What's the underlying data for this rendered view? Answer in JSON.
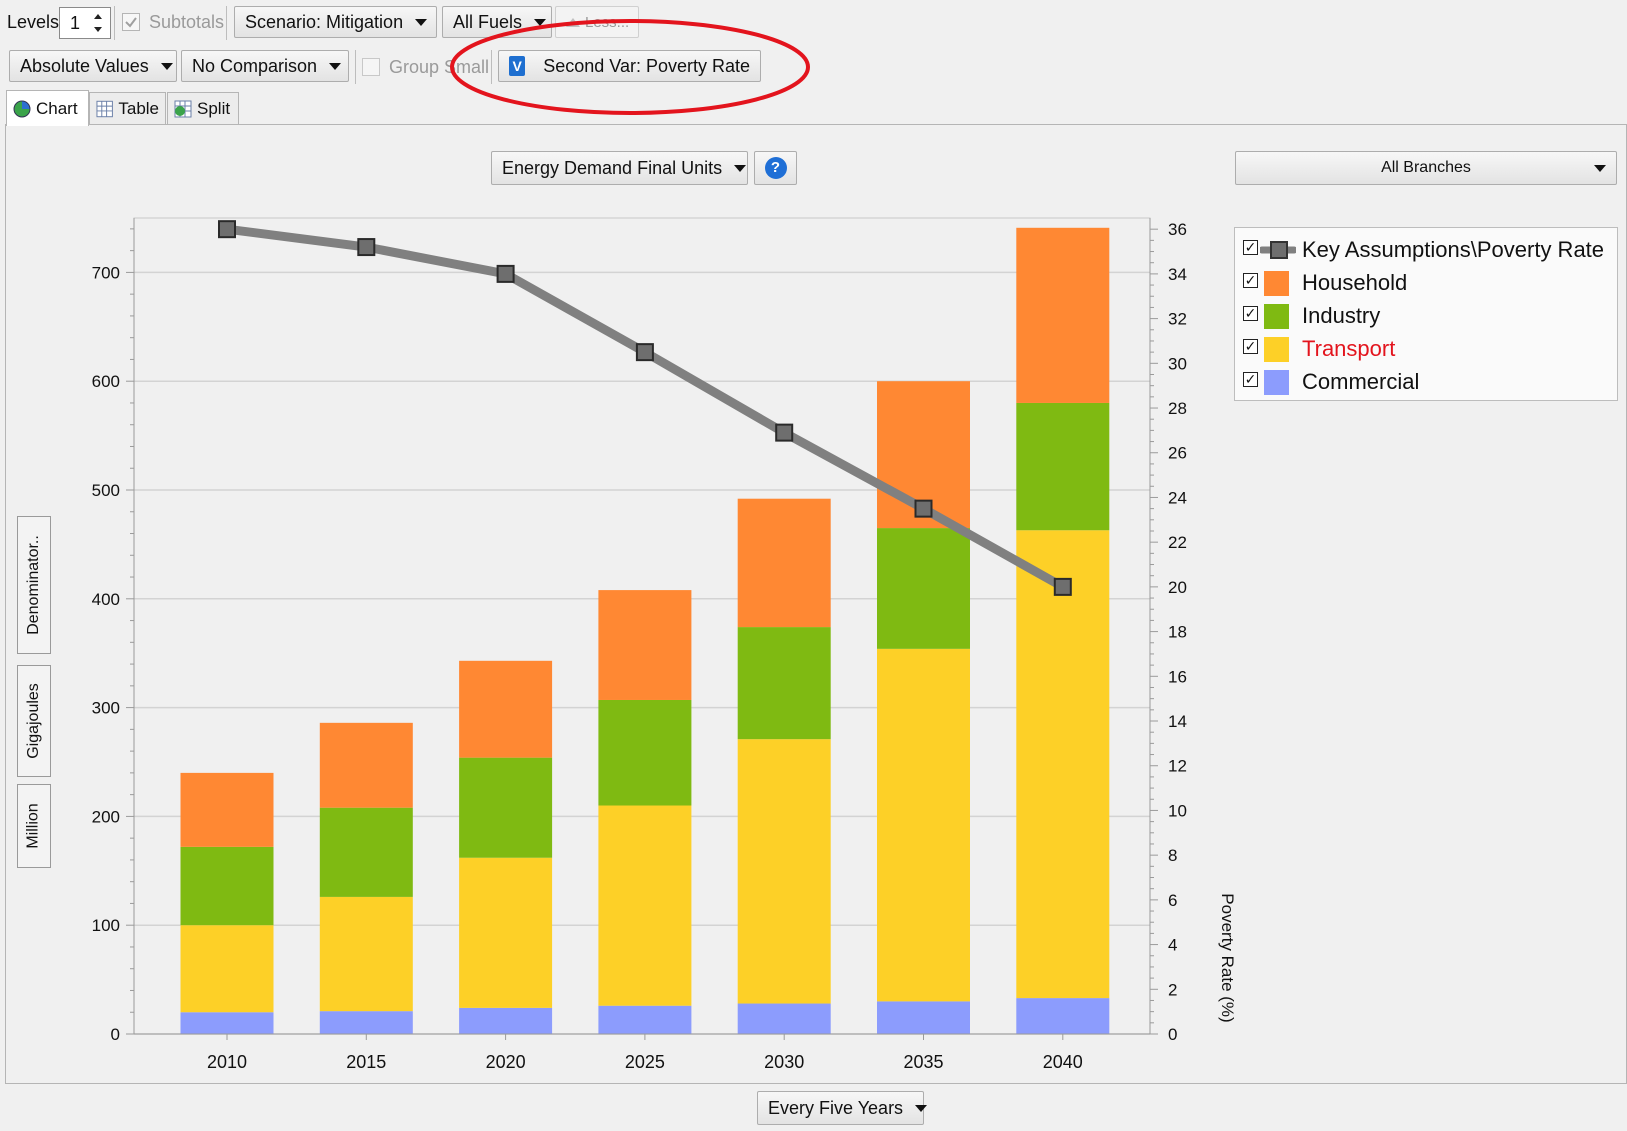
{
  "toolbar": {
    "levels_label": "Levels:",
    "levels_value": "1",
    "subtotals_label": "Subtotals",
    "scenario_label": "Scenario: Mitigation",
    "fuels_label": "All Fuels",
    "less_label": "Less...",
    "values_label": "Absolute Values",
    "comparison_label": "No Comparison",
    "group_small_label": "Group Small",
    "second_var_label": "Second Var: Poverty Rate",
    "second_var_badge": "V"
  },
  "tabs": {
    "chart": "Chart",
    "table": "Table",
    "split": "Split"
  },
  "chart_header": {
    "units_label": "Energy Demand Final Units",
    "help_glyph": "?",
    "branches_label": "All Branches"
  },
  "side_tabs": {
    "denominator": "Denominator..",
    "unit": "Gigajoules",
    "scale": "Million"
  },
  "bottom": {
    "interval_label": "Every Five Years"
  },
  "colors": {
    "household": "#ff8833",
    "industry": "#7fba12",
    "transport": "#fdd027",
    "commercial": "#8c9cfd",
    "poverty_line": "#808080",
    "annotation": "#e3141d"
  },
  "chart_data": {
    "type": "bar",
    "stacked": true,
    "categories": [
      "2010",
      "2015",
      "2020",
      "2025",
      "2030",
      "2035",
      "2040"
    ],
    "series": [
      {
        "name": "Commercial",
        "values": [
          20,
          21,
          24,
          26,
          28,
          30,
          33
        ]
      },
      {
        "name": "Transport",
        "values": [
          80,
          105,
          138,
          184,
          243,
          324,
          430
        ]
      },
      {
        "name": "Industry",
        "values": [
          72,
          82,
          92,
          97,
          103,
          111,
          117
        ]
      },
      {
        "name": "Household",
        "values": [
          68,
          78,
          89,
          101,
          118,
          135,
          161
        ]
      }
    ],
    "line_series": {
      "name": "Key Assumptions\\Poverty Rate",
      "values": [
        36,
        35.2,
        34,
        30.5,
        26.9,
        23.5,
        20
      ],
      "axis": "right"
    },
    "legend": [
      "Key Assumptions\\Poverty Rate",
      "Household",
      "Industry",
      "Transport",
      "Commercial"
    ],
    "y_left": {
      "ylim": [
        0,
        750
      ],
      "ticks": [
        "0",
        "100",
        "200",
        "300",
        "400",
        "500",
        "600",
        "700"
      ]
    },
    "y_right": {
      "ylabel": "Poverty Rate (%)",
      "ylim": [
        0,
        36.5
      ],
      "ticks": [
        "0",
        "2",
        "4",
        "6",
        "8",
        "10",
        "12",
        "14",
        "16",
        "18",
        "20",
        "22",
        "24",
        "26",
        "28",
        "30",
        "32",
        "34",
        "36"
      ]
    },
    "grid": true,
    "legend_position": "top-right"
  }
}
